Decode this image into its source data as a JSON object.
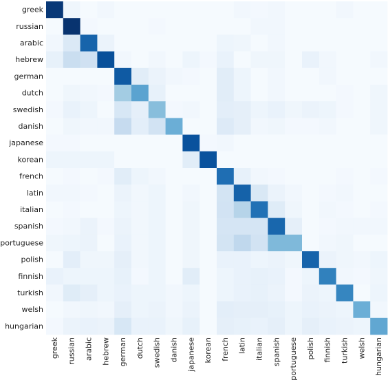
{
  "chart_data": {
    "type": "heatmap",
    "title": "",
    "xlabel": "",
    "ylabel": "",
    "row_labels": [
      "greek",
      "russian",
      "arabic",
      "hebrew",
      "german",
      "dutch",
      "swedish",
      "danish",
      "japanese",
      "korean",
      "french",
      "latin",
      "italian",
      "spanish",
      "portuguese",
      "polish",
      "finnish",
      "turkish",
      "welsh",
      "hungarian"
    ],
    "col_labels": [
      "greek",
      "russian",
      "arabic",
      "hebrew",
      "german",
      "dutch",
      "swedish",
      "danish",
      "japanese",
      "korean",
      "french",
      "latin",
      "italian",
      "spanish",
      "portuguese",
      "polish",
      "finnish",
      "turkish",
      "welsh",
      "hungarian"
    ],
    "value_range": [
      0,
      1
    ],
    "colormap": "Blues",
    "values": [
      [
        0.97,
        0.04,
        0.01,
        0.03,
        0.01,
        0.01,
        0.01,
        0.01,
        0.01,
        0.01,
        0.01,
        0.03,
        0.02,
        0.03,
        0.01,
        0.01,
        0.01,
        0.03,
        0.01,
        0.01
      ],
      [
        0.01,
        0.99,
        0.02,
        0.01,
        0.01,
        0.01,
        0.02,
        0.01,
        0.01,
        0.01,
        0.01,
        0.01,
        0.03,
        0.03,
        0.01,
        0.01,
        0.01,
        0.01,
        0.01,
        0.01
      ],
      [
        0.03,
        0.14,
        0.8,
        0.06,
        0.01,
        0.01,
        0.01,
        0.01,
        0.01,
        0.01,
        0.05,
        0.04,
        0.01,
        0.03,
        0.01,
        0.01,
        0.01,
        0.01,
        0.01,
        0.01
      ],
      [
        0.08,
        0.23,
        0.2,
        0.88,
        0.03,
        0.01,
        0.03,
        0.01,
        0.05,
        0.02,
        0.07,
        0.01,
        0.04,
        0.04,
        0.01,
        0.07,
        0.03,
        0.01,
        0.01,
        0.03
      ],
      [
        0.01,
        0.01,
        0.01,
        0.01,
        0.84,
        0.11,
        0.06,
        0.03,
        0.02,
        0.01,
        0.11,
        0.05,
        0.01,
        0.03,
        0.01,
        0.01,
        0.03,
        0.01,
        0.01,
        0.01
      ],
      [
        0.01,
        0.04,
        0.03,
        0.02,
        0.36,
        0.55,
        0.08,
        0.01,
        0.01,
        0.01,
        0.11,
        0.05,
        0.01,
        0.03,
        0.01,
        0.01,
        0.01,
        0.02,
        0.01,
        0.04
      ],
      [
        0.02,
        0.07,
        0.05,
        0.01,
        0.16,
        0.09,
        0.43,
        0.02,
        0.03,
        0.01,
        0.1,
        0.09,
        0.05,
        0.07,
        0.04,
        0.06,
        0.05,
        0.02,
        0.01,
        0.04
      ],
      [
        0.01,
        0.04,
        0.03,
        0.03,
        0.25,
        0.1,
        0.19,
        0.5,
        0.01,
        0.01,
        0.13,
        0.09,
        0.03,
        0.04,
        0.02,
        0.02,
        0.03,
        0.01,
        0.01,
        0.04
      ],
      [
        0.02,
        0.02,
        0.01,
        0.01,
        0.01,
        0.01,
        0.01,
        0.01,
        0.87,
        0.02,
        0.03,
        0.01,
        0.01,
        0.01,
        0.01,
        0.01,
        0.01,
        0.01,
        0.01,
        0.01
      ],
      [
        0.05,
        0.05,
        0.05,
        0.05,
        0.01,
        0.01,
        0.01,
        0.01,
        0.11,
        0.87,
        0.01,
        0.01,
        0.01,
        0.01,
        0.01,
        0.01,
        0.01,
        0.01,
        0.01,
        0.01
      ],
      [
        0.01,
        0.02,
        0.01,
        0.02,
        0.11,
        0.05,
        0.03,
        0.01,
        0.01,
        0.01,
        0.76,
        0.08,
        0.03,
        0.02,
        0.01,
        0.01,
        0.01,
        0.02,
        0.01,
        0.02
      ],
      [
        0.03,
        0.03,
        0.02,
        0.01,
        0.06,
        0.03,
        0.05,
        0.01,
        0.03,
        0.01,
        0.18,
        0.81,
        0.15,
        0.06,
        0.03,
        0.01,
        0.02,
        0.03,
        0.01,
        0.01
      ],
      [
        0.01,
        0.02,
        0.01,
        0.01,
        0.05,
        0.03,
        0.05,
        0.01,
        0.04,
        0.01,
        0.19,
        0.3,
        0.75,
        0.12,
        0.04,
        0.01,
        0.03,
        0.02,
        0.01,
        0.02
      ],
      [
        0.02,
        0.03,
        0.06,
        0.02,
        0.06,
        0.03,
        0.05,
        0.01,
        0.04,
        0.01,
        0.17,
        0.17,
        0.17,
        0.79,
        0.09,
        0.01,
        0.02,
        0.03,
        0.03,
        0.03
      ],
      [
        0.04,
        0.05,
        0.06,
        0.01,
        0.07,
        0.03,
        0.05,
        0.01,
        0.04,
        0.01,
        0.18,
        0.27,
        0.19,
        0.45,
        0.45,
        0.01,
        0.03,
        0.04,
        0.01,
        0.01
      ],
      [
        0.01,
        0.1,
        0.04,
        0.04,
        0.09,
        0.03,
        0.05,
        0.01,
        0.04,
        0.01,
        0.07,
        0.07,
        0.05,
        0.06,
        0.04,
        0.8,
        0.06,
        0.04,
        0.03,
        0.05
      ],
      [
        0.07,
        0.05,
        0.05,
        0.05,
        0.08,
        0.02,
        0.05,
        0.01,
        0.11,
        0.01,
        0.05,
        0.07,
        0.08,
        0.07,
        0.02,
        0.05,
        0.69,
        0.03,
        0.02,
        0.04
      ],
      [
        0.03,
        0.12,
        0.09,
        0.05,
        0.07,
        0.05,
        0.05,
        0.03,
        0.05,
        0.01,
        0.05,
        0.07,
        0.08,
        0.06,
        0.02,
        0.06,
        0.05,
        0.67,
        0.01,
        0.05
      ],
      [
        0.01,
        0.03,
        0.04,
        0.03,
        0.09,
        0.05,
        0.06,
        0.03,
        0.06,
        0.01,
        0.1,
        0.09,
        0.09,
        0.08,
        0.05,
        0.07,
        0.06,
        0.05,
        0.5,
        0.03
      ],
      [
        0.02,
        0.06,
        0.07,
        0.06,
        0.16,
        0.07,
        0.07,
        0.04,
        0.08,
        0.01,
        0.09,
        0.08,
        0.07,
        0.09,
        0.05,
        0.09,
        0.07,
        0.06,
        0.05,
        0.53
      ]
    ]
  }
}
